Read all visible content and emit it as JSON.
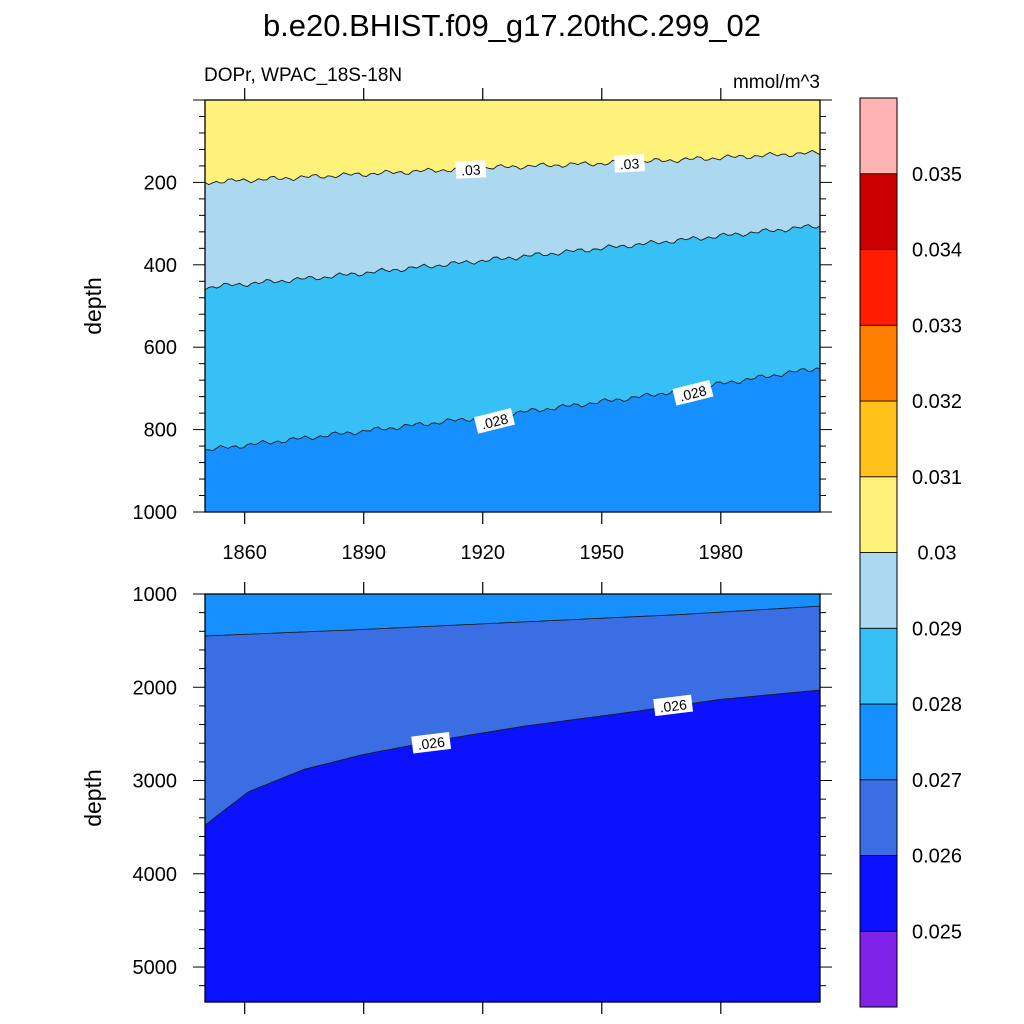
{
  "figure": {
    "title": "b.e20.BHIST.f09_g17.20thC.299_02",
    "variable_region": "DOPr, WPAC_18S-18N",
    "units": "mmol/m^3"
  },
  "colors": {
    "levels": [
      "#7f22e8",
      "#0a12ff",
      "#3a6ee2",
      "#1690ff",
      "#36c0f6",
      "#acd9f0",
      "#fff27a",
      "#ffc11a",
      "#ff8000",
      "#ff1c00",
      "#cc0000",
      "#ffb3b3"
    ]
  },
  "chart_data": [
    {
      "type": "heatmap",
      "subtype": "filled-contour (Hovmoller: time vs depth)",
      "xlabel": "",
      "ylabel": "depth",
      "xlim": [
        1850,
        2005
      ],
      "ylim": [
        1000,
        0
      ],
      "xticks": [
        1860,
        1890,
        1920,
        1950,
        1980
      ],
      "yticks": [
        200,
        400,
        600,
        800,
        1000
      ],
      "contour_lines": [
        {
          "level": 0.03,
          "x": [
            1850,
            1880,
            1920,
            1960,
            2005
          ],
          "depth": [
            200,
            185,
            165,
            150,
            128
          ]
        },
        {
          "level": 0.029,
          "x": [
            1850,
            1880,
            1920,
            1960,
            2005
          ],
          "depth": [
            455,
            430,
            390,
            350,
            305
          ]
        },
        {
          "level": 0.028,
          "x": [
            1850,
            1880,
            1920,
            1960,
            2005
          ],
          "depth": [
            850,
            815,
            770,
            720,
            650
          ]
        }
      ],
      "contour_labels": [
        {
          "text": ".03",
          "x": 1917,
          "depth": 170
        },
        {
          "text": ".03",
          "x": 1957,
          "depth": 155
        },
        {
          "text": ".028",
          "x": 1923,
          "depth": 780
        },
        {
          "text": ".028",
          "x": 1973,
          "depth": 712
        }
      ]
    },
    {
      "type": "heatmap",
      "subtype": "filled-contour (Hovmoller: time vs depth)",
      "xlabel": "",
      "ylabel": "depth",
      "xlim": [
        1850,
        2005
      ],
      "ylim": [
        5375,
        1000
      ],
      "yticks": [
        1000,
        2000,
        3000,
        4000,
        5000
      ],
      "contour_lines": [
        {
          "level": 0.027,
          "x": [
            1850,
            1890,
            1930,
            1970,
            2005
          ],
          "depth": [
            1450,
            1380,
            1300,
            1220,
            1130
          ]
        },
        {
          "level": 0.026,
          "x": [
            1850,
            1853,
            1861,
            1875,
            1890,
            1910,
            1930,
            1955,
            1980,
            2005
          ],
          "depth": [
            3480,
            3380,
            3120,
            2880,
            2720,
            2560,
            2420,
            2280,
            2130,
            2030
          ]
        }
      ],
      "contour_labels": [
        {
          "text": ".026",
          "x": 1907,
          "depth": 2600
        },
        {
          "text": ".026",
          "x": 1968,
          "depth": 2200
        }
      ]
    }
  ],
  "colorbar": {
    "labels": [
      "0.025",
      "0.026",
      "0.027",
      "0.028",
      "0.029",
      "0.03",
      "0.031",
      "0.032",
      "0.033",
      "0.034",
      "0.035"
    ]
  }
}
